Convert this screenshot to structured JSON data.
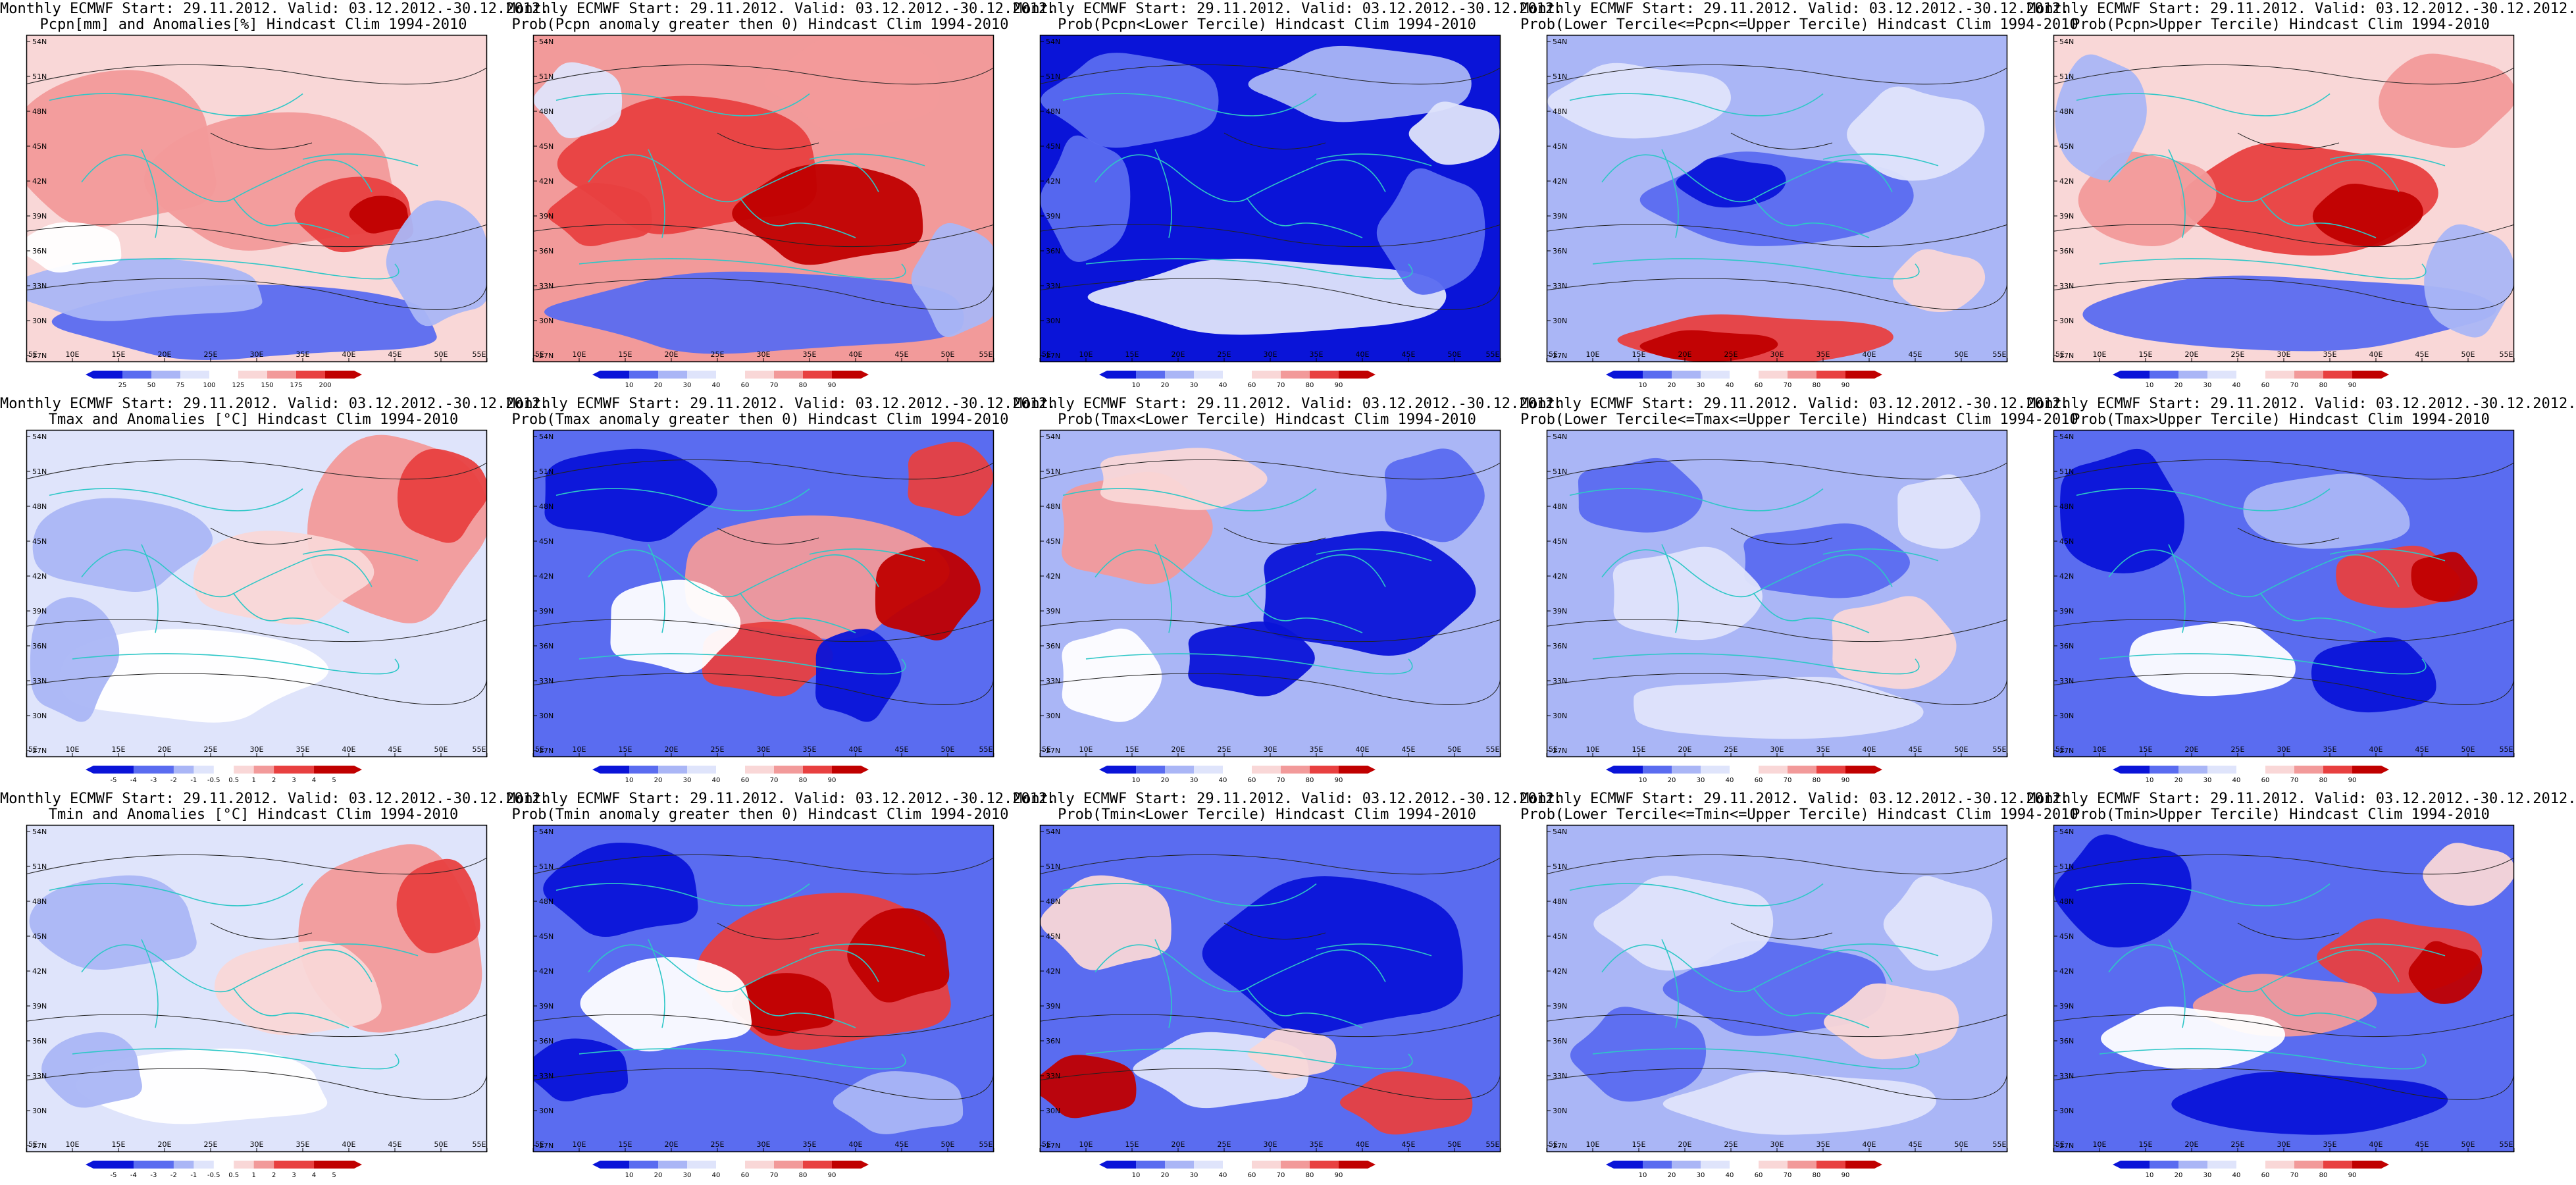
{
  "figure": {
    "lat_labels": [
      "54N",
      "51N",
      "48N",
      "45N",
      "42N",
      "39N",
      "36N",
      "33N",
      "30N",
      "27N"
    ],
    "lon_labels": [
      "5E",
      "10E",
      "15E",
      "20E",
      "25E",
      "30E",
      "35E",
      "40E",
      "45E",
      "50E",
      "55E"
    ],
    "colors": {
      "strong_blue": "#0a14d8",
      "mid_blue": "#5a6cf0",
      "light_blue": "#aab6f6",
      "pale_blue": "#dfe4fb",
      "white": "#ffffff",
      "pale_red": "#f9d7d7",
      "light_red": "#f29a9a",
      "mid_red": "#e84040",
      "strong_red": "#c00000",
      "coastline": "#2ec7c7",
      "contour": "#222222"
    },
    "colorbars": {
      "pcpn_anomaly": [
        "25",
        "50",
        "75",
        "100",
        "125",
        "150",
        "175",
        "200"
      ],
      "temp_anomaly": [
        "-5",
        "-4",
        "-3",
        "-2",
        "-1",
        "-0.5",
        "0.5",
        "1",
        "2",
        "3",
        "4",
        "5"
      ],
      "probability": [
        "10",
        "20",
        "30",
        "40",
        "60",
        "70",
        "80",
        "90"
      ]
    }
  },
  "panels": [
    {
      "row": 0,
      "col": 0,
      "title1": "Monthly ECMWF Start: 29.11.2012. Valid: 03.12.2012.-30.12.2012.",
      "title2": "Pcpn[mm] and Anomalies[%] Hindcast Clim 1994-2010",
      "cbar": "pcpn_anomaly"
    },
    {
      "row": 0,
      "col": 1,
      "title1": "Monthly ECMWF Start: 29.11.2012. Valid: 03.12.2012.-30.12.2012.",
      "title2": "Prob(Pcpn anomaly greater then 0) Hindcast Clim 1994-2010",
      "cbar": "probability"
    },
    {
      "row": 0,
      "col": 2,
      "title1": "Monthly ECMWF Start: 29.11.2012. Valid: 03.12.2012.-30.12.2012.",
      "title2": "Prob(Pcpn<Lower Tercile) Hindcast Clim 1994-2010",
      "cbar": "probability"
    },
    {
      "row": 0,
      "col": 3,
      "title1": "Monthly ECMWF Start: 29.11.2012. Valid: 03.12.2012.-30.12.2012.",
      "title2": "Prob(Lower Tercile<=Pcpn<=Upper Tercile) Hindcast Clim 1994-2010",
      "cbar": "probability"
    },
    {
      "row": 0,
      "col": 4,
      "title1": "Monthly ECMWF Start: 29.11.2012. Valid: 03.12.2012.-30.12.2012.",
      "title2": "Prob(Pcpn>Upper Tercile) Hindcast Clim 1994-2010",
      "cbar": "probability"
    },
    {
      "row": 1,
      "col": 0,
      "title1": "Monthly ECMWF Start: 29.11.2012. Valid: 03.12.2012.-30.12.2012.",
      "title2": "Tmax and Anomalies [°C] Hindcast Clim 1994-2010",
      "cbar": "temp_anomaly"
    },
    {
      "row": 1,
      "col": 1,
      "title1": "Monthly ECMWF Start: 29.11.2012. Valid: 03.12.2012.-30.12.2012.",
      "title2": "Prob(Tmax anomaly greater then 0) Hindcast Clim 1994-2010",
      "cbar": "probability"
    },
    {
      "row": 1,
      "col": 2,
      "title1": "Monthly ECMWF Start: 29.11.2012. Valid: 03.12.2012.-30.12.2012.",
      "title2": "Prob(Tmax<Lower Tercile) Hindcast Clim 1994-2010",
      "cbar": "probability"
    },
    {
      "row": 1,
      "col": 3,
      "title1": "Monthly ECMWF Start: 29.11.2012. Valid: 03.12.2012.-30.12.2012.",
      "title2": "Prob(Lower Tercile<=Tmax<=Upper Tercile) Hindcast Clim 1994-2010",
      "cbar": "probability"
    },
    {
      "row": 1,
      "col": 4,
      "title1": "Monthly ECMWF Start: 29.11.2012. Valid: 03.12.2012.-30.12.2012.",
      "title2": "Prob(Tmax>Upper Tercile) Hindcast Clim 1994-2010",
      "cbar": "probability"
    },
    {
      "row": 2,
      "col": 0,
      "title1": "Monthly ECMWF Start: 29.11.2012. Valid: 03.12.2012.-30.12.2012.",
      "title2": "Tmin and Anomalies [°C] Hindcast Clim 1994-2010",
      "cbar": "temp_anomaly"
    },
    {
      "row": 2,
      "col": 1,
      "title1": "Monthly ECMWF Start: 29.11.2012. Valid: 03.12.2012.-30.12.2012.",
      "title2": "Prob(Tmin anomaly greater then 0) Hindcast Clim 1994-2010",
      "cbar": "probability"
    },
    {
      "row": 2,
      "col": 2,
      "title1": "Monthly ECMWF Start: 29.11.2012. Valid: 03.12.2012.-30.12.2012.",
      "title2": "Prob(Tmin<Lower Tercile) Hindcast Clim 1994-2010",
      "cbar": "probability"
    },
    {
      "row": 2,
      "col": 3,
      "title1": "Monthly ECMWF Start: 29.11.2012. Valid: 03.12.2012.-30.12.2012.",
      "title2": "Prob(Lower Tercile<=Tmin<=Upper Tercile) Hindcast Clim 1994-2010",
      "cbar": "probability"
    },
    {
      "row": 2,
      "col": 4,
      "title1": "Monthly ECMWF Start: 29.11.2012. Valid: 03.12.2012.-30.12.2012.",
      "title2": "Prob(Tmin>Upper Tercile) Hindcast Clim 1994-2010",
      "cbar": "probability"
    }
  ]
}
